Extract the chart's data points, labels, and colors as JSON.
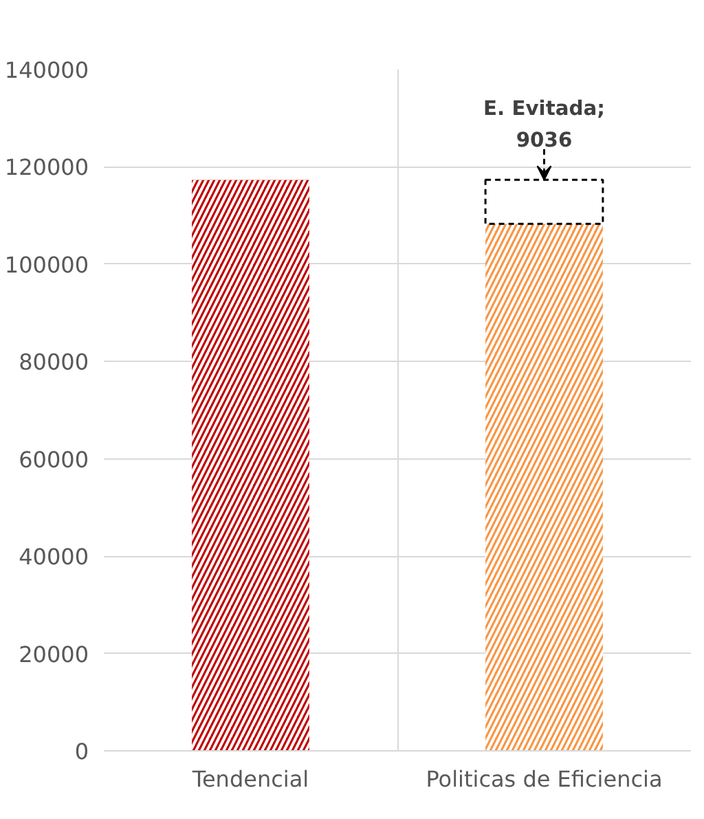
{
  "chart_data": {
    "type": "bar",
    "stacked": true,
    "categories": [
      "Tendencial",
      "Politicas de Eficiencia"
    ],
    "series": [
      {
        "colors": [
          "#c00000",
          "#f79646"
        ],
        "values": [
          117300,
          108300
        ]
      },
      {
        "color": "#ffffff",
        "values": [
          null,
          9036
        ],
        "value_labels": [
          null,
          "E. Evitada; 9036"
        ]
      }
    ],
    "ylim": [
      0,
      140000
    ],
    "yticks": [
      0,
      20000,
      40000,
      60000,
      80000,
      100000,
      120000,
      140000
    ],
    "grid": true
  }
}
